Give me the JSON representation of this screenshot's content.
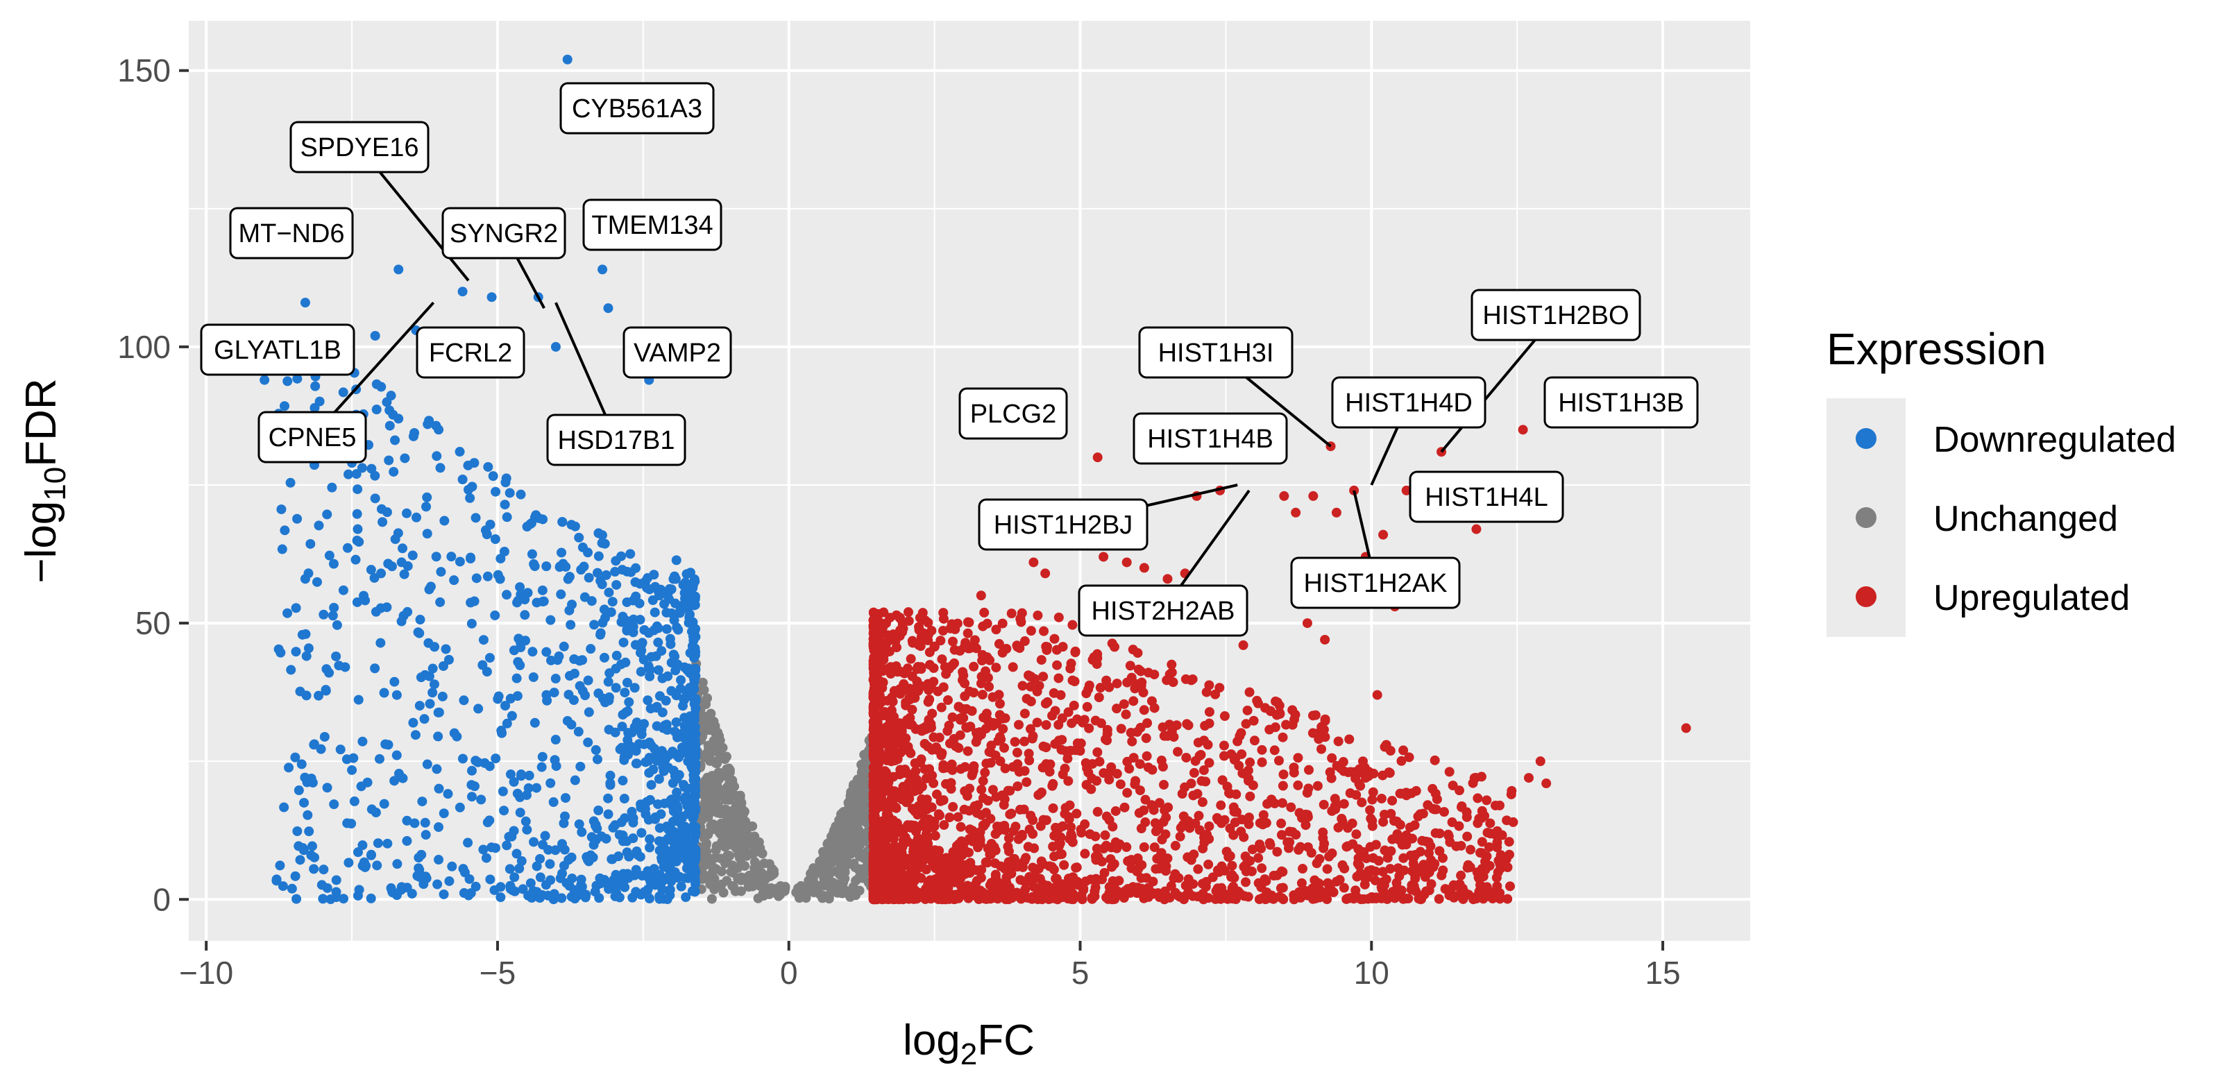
{
  "chart_data": {
    "type": "scatter",
    "title": "",
    "xlabel_main": "log",
    "xlabel_sub": "2",
    "xlabel_tail": "FC",
    "ylabel_main": "−log",
    "ylabel_sub": "10",
    "ylabel_tail": "FDR",
    "xlim": [
      -10.3,
      16.5
    ],
    "ylim": [
      -7.5,
      159
    ],
    "x_ticks": [
      -10,
      -5,
      0,
      5,
      10,
      15
    ],
    "x_tick_labels": [
      "−10",
      "−5",
      "0",
      "5",
      "10",
      "15"
    ],
    "y_ticks": [
      0,
      50,
      100,
      150
    ],
    "y_tick_labels": [
      "0",
      "50",
      "100",
      "150"
    ],
    "grid": true,
    "background": "#ebebeb",
    "legend": {
      "title": "Expression",
      "position": "right",
      "entries": [
        {
          "name": "Downregulated",
          "color": "#1f77d0"
        },
        {
          "name": "Unchanged",
          "color": "#808080"
        },
        {
          "name": "Upregulated",
          "color": "#cc2222"
        }
      ]
    },
    "fc_threshold_down": -1.6,
    "fc_threshold_up": 1.45,
    "series": [
      {
        "name": "Downregulated",
        "color": "#1f77d0",
        "highlight_points": [
          {
            "x": -3.8,
            "y": 152
          },
          {
            "x": -6.7,
            "y": 114
          },
          {
            "x": -5.6,
            "y": 110
          },
          {
            "x": -5.1,
            "y": 109
          },
          {
            "x": -3.2,
            "y": 114
          },
          {
            "x": -4.3,
            "y": 109
          },
          {
            "x": -6.4,
            "y": 103
          },
          {
            "x": -4.0,
            "y": 100
          },
          {
            "x": -3.1,
            "y": 107
          },
          {
            "x": -2.4,
            "y": 94
          },
          {
            "x": -8.3,
            "y": 108
          },
          {
            "x": -7.1,
            "y": 102
          },
          {
            "x": -9.0,
            "y": 94
          },
          {
            "x": -8.3,
            "y": 58
          },
          {
            "x": -6.2,
            "y": 86
          },
          {
            "x": -5.4,
            "y": 79
          },
          {
            "x": -7.4,
            "y": 67
          },
          {
            "x": -7.5,
            "y": 79
          },
          {
            "x": -6.9,
            "y": 90
          },
          {
            "x": -6.7,
            "y": 87
          },
          {
            "x": -5.6,
            "y": 76
          },
          {
            "x": -7.0,
            "y": 59
          }
        ]
      },
      {
        "name": "Unchanged",
        "color": "#808080"
      },
      {
        "name": "Upregulated",
        "color": "#cc2222",
        "highlight_points": [
          {
            "x": 15.4,
            "y": 31
          },
          {
            "x": 12.6,
            "y": 85
          },
          {
            "x": 11.2,
            "y": 81
          },
          {
            "x": 9.3,
            "y": 82
          },
          {
            "x": 5.3,
            "y": 80
          },
          {
            "x": 11.8,
            "y": 67
          },
          {
            "x": 11.3,
            "y": 74
          },
          {
            "x": 10.8,
            "y": 74
          },
          {
            "x": 12.9,
            "y": 25
          },
          {
            "x": 13.0,
            "y": 21
          },
          {
            "x": 12.7,
            "y": 22
          },
          {
            "x": 12.4,
            "y": 19
          },
          {
            "x": 12.2,
            "y": 17
          },
          {
            "x": 11.9,
            "y": 16
          },
          {
            "x": 11.7,
            "y": 9
          },
          {
            "x": 10.6,
            "y": 74
          },
          {
            "x": 10.2,
            "y": 66
          },
          {
            "x": 9.7,
            "y": 74
          },
          {
            "x": 9.0,
            "y": 73
          },
          {
            "x": 8.7,
            "y": 70
          },
          {
            "x": 8.5,
            "y": 73
          },
          {
            "x": 9.4,
            "y": 70
          },
          {
            "x": 10.5,
            "y": 59
          },
          {
            "x": 10.4,
            "y": 53
          },
          {
            "x": 9.9,
            "y": 62
          },
          {
            "x": 7.4,
            "y": 74
          },
          {
            "x": 7.0,
            "y": 73
          },
          {
            "x": 6.8,
            "y": 59
          },
          {
            "x": 6.5,
            "y": 58
          },
          {
            "x": 6.1,
            "y": 60
          },
          {
            "x": 5.8,
            "y": 61
          },
          {
            "x": 5.4,
            "y": 62
          },
          {
            "x": 4.2,
            "y": 61
          },
          {
            "x": 4.4,
            "y": 59
          },
          {
            "x": 10.1,
            "y": 37
          },
          {
            "x": 10.3,
            "y": 23
          },
          {
            "x": 9.9,
            "y": 22
          },
          {
            "x": 9.6,
            "y": 23
          },
          {
            "x": 10.8,
            "y": 15
          },
          {
            "x": 11.1,
            "y": 12
          },
          {
            "x": 10.7,
            "y": 11
          },
          {
            "x": 8.9,
            "y": 50
          },
          {
            "x": 9.2,
            "y": 47
          },
          {
            "x": 7.3,
            "y": 53
          },
          {
            "x": 7.8,
            "y": 46
          },
          {
            "x": 6.3,
            "y": 53
          },
          {
            "x": 5.7,
            "y": 50
          },
          {
            "x": 3.3,
            "y": 55
          }
        ]
      }
    ],
    "annotations": [
      {
        "label": "CYB561A3",
        "point": {
          "x": -3.8,
          "y": 152
        },
        "leader": false
      },
      {
        "label": "SPDYE16",
        "point": {
          "x": -5.5,
          "y": 112
        },
        "leader": true
      },
      {
        "label": "MT−ND6",
        "point": {
          "x": -8.3,
          "y": 108
        },
        "leader": false
      },
      {
        "label": "SYNGR2",
        "point": {
          "x": -4.2,
          "y": 107
        },
        "leader": true
      },
      {
        "label": "TMEM134",
        "point": {
          "x": -3.1,
          "y": 107
        },
        "leader": false
      },
      {
        "label": "GLYATL1B",
        "point": {
          "x": -9.0,
          "y": 94
        },
        "leader": false
      },
      {
        "label": "FCRL2",
        "point": {
          "x": -5.8,
          "y": 97
        },
        "leader": false
      },
      {
        "label": "VAMP2",
        "point": {
          "x": -2.4,
          "y": 94
        },
        "leader": false
      },
      {
        "label": "CPNE5",
        "point": {
          "x": -6.1,
          "y": 108
        },
        "leader": true
      },
      {
        "label": "HSD17B1",
        "point": {
          "x": -4.0,
          "y": 108
        },
        "leader": true
      },
      {
        "label": "PLCG2",
        "point": {
          "x": 5.3,
          "y": 80
        },
        "leader": false
      },
      {
        "label": "HIST1H3I",
        "point": {
          "x": 9.3,
          "y": 82
        },
        "leader": true
      },
      {
        "label": "HIST1H2BO",
        "point": {
          "x": 11.2,
          "y": 81
        },
        "leader": true
      },
      {
        "label": "HIST1H4D",
        "point": {
          "x": 10.0,
          "y": 75
        },
        "leader": true
      },
      {
        "label": "HIST1H3B",
        "point": {
          "x": 12.6,
          "y": 85
        },
        "leader": false
      },
      {
        "label": "HIST1H4B",
        "point": {
          "x": 7.7,
          "y": 75
        },
        "leader": false
      },
      {
        "label": "HIST1H4L",
        "point": {
          "x": 11.8,
          "y": 67
        },
        "leader": false
      },
      {
        "label": "HIST1H2BJ",
        "point": {
          "x": 7.7,
          "y": 75
        },
        "leader": true
      },
      {
        "label": "HIST1H2AK",
        "point": {
          "x": 9.7,
          "y": 74
        },
        "leader": true
      },
      {
        "label": "HIST2H2AB",
        "point": {
          "x": 7.9,
          "y": 74
        },
        "leader": true
      }
    ]
  }
}
